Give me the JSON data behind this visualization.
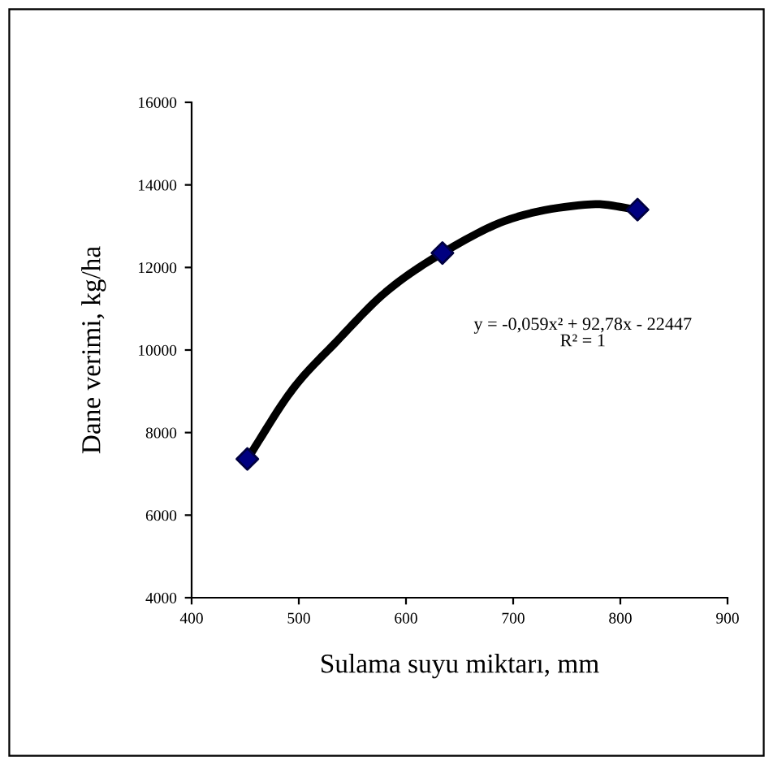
{
  "chart_data": {
    "type": "scatter",
    "xlabel": "Sulama suyu miktarı, mm",
    "ylabel": "Dane verimi, kg/ha",
    "xlim": [
      400,
      900
    ],
    "xticks": [
      400,
      500,
      600,
      700,
      800,
      900
    ],
    "ylim": [
      4000,
      16000
    ],
    "yticks": [
      4000,
      6000,
      8000,
      10000,
      12000,
      14000,
      16000
    ],
    "grid": false,
    "legend": false,
    "series": [
      {
        "type": "line",
        "color": "#000000",
        "marker": "none",
        "line_style": "solid",
        "x": [
          452,
          494,
          535,
          581,
          634,
          698,
          773,
          816
        ],
        "values": [
          7360,
          9040,
          10200,
          11400,
          12350,
          13180,
          13530,
          13400
        ]
      },
      {
        "color": "#000080",
        "marker": "diamond",
        "x": [
          452,
          634,
          816
        ],
        "values": [
          7360,
          12350,
          13400
        ]
      }
    ],
    "annotations": [
      "y = -0,059x² + 92,78x - 22447\nR² = 1"
    ]
  }
}
